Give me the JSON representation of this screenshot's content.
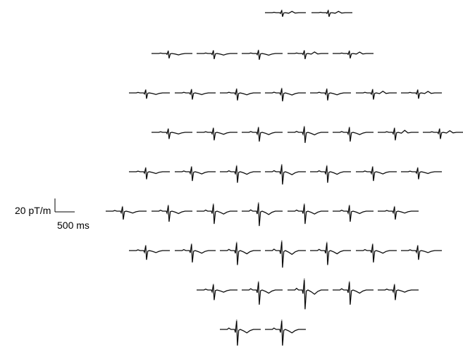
{
  "scale_bar": {
    "amplitude_label": "20 pT/m",
    "time_label": "500 ms"
  },
  "colors": {
    "trace": "#000000",
    "overlay_trace": "#9a9a9a",
    "background": "#ffffff"
  },
  "grid": {
    "row_channel_counts": [
      2,
      5,
      7,
      7,
      7,
      7,
      7,
      5,
      2
    ],
    "total_channels": 49
  }
}
